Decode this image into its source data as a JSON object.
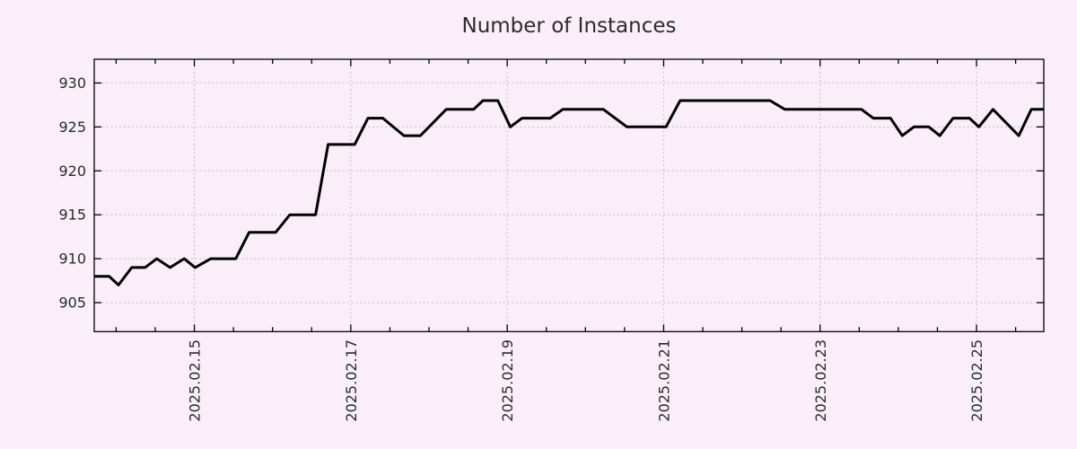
{
  "chart_data": {
    "type": "line",
    "title": "Number of Instances",
    "xlabel": "",
    "ylabel": "",
    "legend": "none",
    "grid": "dotted",
    "x_unit": "day of February 2025 (decimal)",
    "x_domain": [
      13.72,
      25.86
    ],
    "y_domain": [
      901.7,
      932.7
    ],
    "y_ticks": [
      905,
      910,
      915,
      920,
      925,
      930
    ],
    "x_major_ticks": [
      {
        "value": 15,
        "label": "2025.02.15"
      },
      {
        "value": 17,
        "label": "2025.02.17"
      },
      {
        "value": 19,
        "label": "2025.02.19"
      },
      {
        "value": 21,
        "label": "2025.02.21"
      },
      {
        "value": 23,
        "label": "2025.02.23"
      },
      {
        "value": 25,
        "label": "2025.02.25"
      }
    ],
    "x_minor_tick_step": 0.5,
    "series": [
      {
        "name": "instances",
        "points": [
          [
            13.72,
            908
          ],
          [
            13.91,
            908
          ],
          [
            14.03,
            907
          ],
          [
            14.2,
            909
          ],
          [
            14.37,
            909
          ],
          [
            14.52,
            910
          ],
          [
            14.69,
            909
          ],
          [
            14.87,
            910
          ],
          [
            15.01,
            909
          ],
          [
            15.21,
            910
          ],
          [
            15.53,
            910
          ],
          [
            15.7,
            913
          ],
          [
            16.04,
            913
          ],
          [
            16.22,
            915
          ],
          [
            16.55,
            915
          ],
          [
            16.71,
            923
          ],
          [
            17.05,
            923
          ],
          [
            17.22,
            926
          ],
          [
            17.41,
            926
          ],
          [
            17.68,
            924
          ],
          [
            17.89,
            924
          ],
          [
            18.22,
            927
          ],
          [
            18.57,
            927
          ],
          [
            18.69,
            928
          ],
          [
            18.88,
            928
          ],
          [
            19.04,
            925
          ],
          [
            19.19,
            926
          ],
          [
            19.55,
            926
          ],
          [
            19.71,
            927
          ],
          [
            20.23,
            927
          ],
          [
            20.38,
            926
          ],
          [
            20.53,
            925
          ],
          [
            21.03,
            925
          ],
          [
            21.21,
            928
          ],
          [
            22.36,
            928
          ],
          [
            22.55,
            927
          ],
          [
            23.53,
            927
          ],
          [
            23.68,
            926
          ],
          [
            23.9,
            926
          ],
          [
            24.05,
            924
          ],
          [
            24.2,
            925
          ],
          [
            24.39,
            925
          ],
          [
            24.53,
            924
          ],
          [
            24.7,
            926
          ],
          [
            24.91,
            926
          ],
          [
            25.03,
            925
          ],
          [
            25.21,
            927
          ],
          [
            25.54,
            924
          ],
          [
            25.7,
            927
          ],
          [
            25.86,
            927
          ]
        ]
      }
    ],
    "colors": {
      "background": "#faeef8",
      "line": "#000000",
      "grid": "#b5b5b5",
      "axis": "#000000",
      "text": "#2b2b2b"
    }
  }
}
